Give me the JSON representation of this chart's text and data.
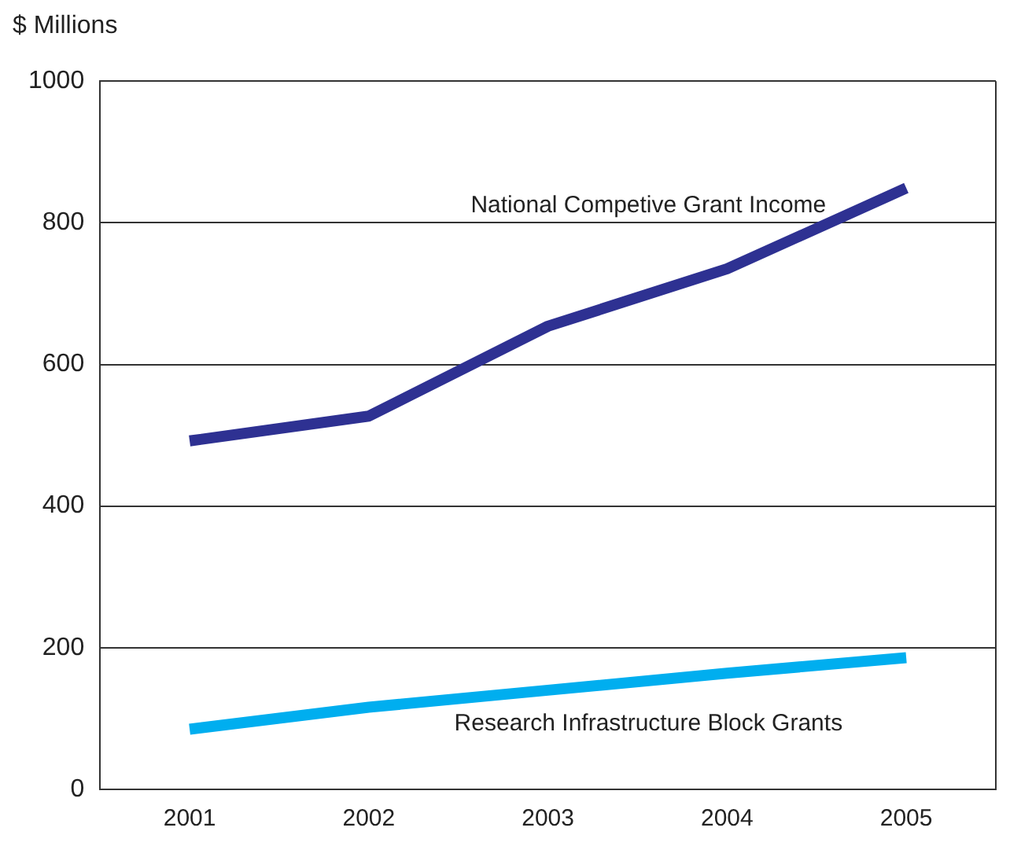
{
  "chart_data": {
    "type": "line",
    "ylabel": "$ Millions",
    "categories": [
      "2001",
      "2002",
      "2003",
      "2004",
      "2005"
    ],
    "series": [
      {
        "name": "National Competive Grant Income",
        "color": "#2e3192",
        "values": [
          492,
          527,
          654,
          735,
          849
        ]
      },
      {
        "name": "Research Infrastructure Block Grants",
        "color": "#00aeef",
        "values": [
          85,
          116,
          140,
          164,
          186
        ]
      }
    ],
    "ylim": [
      0,
      1000
    ],
    "yticks": [
      0,
      200,
      400,
      600,
      800,
      1000
    ],
    "grid": "y",
    "legend": false,
    "marker": "none",
    "line_style": "solid"
  }
}
